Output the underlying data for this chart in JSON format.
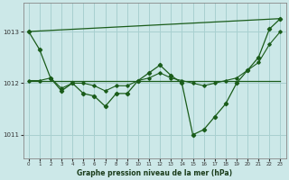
{
  "title": "Graphe pression niveau de la mer (hPa)",
  "background_color": "#cce8e8",
  "grid_color": "#a8d0d0",
  "line_color": "#1a5c1a",
  "marker_color": "#1a5c1a",
  "xlim": [
    -0.5,
    23.5
  ],
  "ylim": [
    1010.55,
    1013.55
  ],
  "yticks": [
    1011,
    1012,
    1013
  ],
  "xticks": [
    0,
    1,
    2,
    3,
    4,
    5,
    6,
    7,
    8,
    9,
    10,
    11,
    12,
    13,
    14,
    15,
    16,
    17,
    18,
    19,
    20,
    21,
    22,
    23
  ],
  "series_main": {
    "x": [
      0,
      1,
      2,
      3,
      4,
      5,
      6,
      7,
      8,
      9,
      10,
      11,
      12,
      13,
      14,
      15,
      16,
      17,
      18,
      19,
      20,
      21,
      22,
      23
    ],
    "y": [
      1013.0,
      1012.65,
      1012.1,
      1011.85,
      1012.0,
      1011.8,
      1011.75,
      1011.55,
      1011.8,
      1011.8,
      1012.05,
      1012.2,
      1012.35,
      1012.15,
      1012.0,
      1011.0,
      1011.1,
      1011.35,
      1011.6,
      1012.0,
      1012.25,
      1012.5,
      1013.05,
      1013.25
    ]
  },
  "series_flat": {
    "x": [
      0,
      23
    ],
    "y": [
      1012.05,
      1012.05
    ]
  },
  "series_diagonal": {
    "x": [
      0,
      23
    ],
    "y": [
      1013.0,
      1013.25
    ]
  },
  "series_second": {
    "x": [
      0,
      1,
      2,
      3,
      4,
      5,
      6,
      7,
      8,
      9,
      10,
      11,
      12,
      13,
      14,
      15,
      16,
      17,
      18,
      19,
      20,
      21,
      22,
      23
    ],
    "y": [
      1012.05,
      1012.05,
      1012.1,
      1011.9,
      1012.0,
      1012.0,
      1011.95,
      1011.85,
      1011.95,
      1011.95,
      1012.05,
      1012.1,
      1012.2,
      1012.1,
      1012.05,
      1012.0,
      1011.95,
      1012.0,
      1012.05,
      1012.1,
      1012.25,
      1012.4,
      1012.75,
      1013.0
    ]
  }
}
